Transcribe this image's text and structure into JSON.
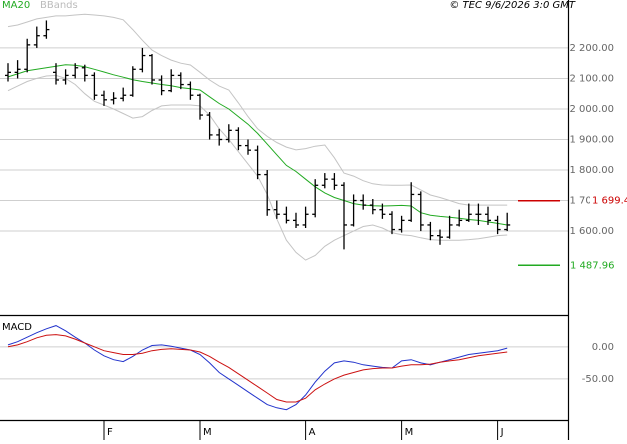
{
  "chart_data": [
    {
      "type": "ohlc",
      "credit": "© TEC 9/6/2026 3:0 GMT",
      "ohlc": {
        "color": "#000000",
        "open": [
          2110,
          2120,
          2130,
          2210,
          2240,
          2120,
          2095,
          2110,
          2135,
          2110,
          2045,
          2030,
          2035,
          2045,
          2130,
          2175,
          2095,
          2060,
          2110,
          2080,
          2045,
          1980,
          1915,
          1900,
          1930,
          1880,
          1865,
          1785,
          1670,
          1655,
          1635,
          1620,
          1655,
          1750,
          1770,
          1750,
          1620,
          1700,
          1685,
          1670,
          1655,
          1605,
          1635,
          1720,
          1620,
          1585,
          1580,
          1620,
          1635,
          1655,
          1655,
          1635,
          1605
        ],
        "high": [
          2150,
          2160,
          2230,
          2270,
          2290,
          2150,
          2130,
          2150,
          2145,
          2120,
          2060,
          2055,
          2070,
          2140,
          2200,
          2180,
          2110,
          2130,
          2120,
          2090,
          2050,
          1990,
          1935,
          1950,
          1940,
          1900,
          1880,
          1800,
          1700,
          1680,
          1660,
          1680,
          1770,
          1790,
          1790,
          1760,
          1720,
          1720,
          1705,
          1690,
          1665,
          1650,
          1760,
          1730,
          1630,
          1605,
          1650,
          1670,
          1690,
          1690,
          1680,
          1650,
          1660
        ],
        "low": [
          2090,
          2100,
          2120,
          2200,
          2230,
          2080,
          2080,
          2100,
          2090,
          2030,
          2010,
          2015,
          2025,
          2040,
          2120,
          2080,
          2045,
          2055,
          2065,
          2030,
          1965,
          1900,
          1880,
          1890,
          1865,
          1850,
          1770,
          1650,
          1640,
          1625,
          1610,
          1610,
          1645,
          1740,
          1735,
          1540,
          1615,
          1670,
          1655,
          1640,
          1590,
          1595,
          1630,
          1600,
          1570,
          1555,
          1575,
          1615,
          1630,
          1620,
          1620,
          1590,
          1600
        ],
        "close": [
          2120,
          2130,
          2210,
          2240,
          2260,
          2095,
          2110,
          2135,
          2110,
          2045,
          2030,
          2035,
          2045,
          2130,
          2175,
          2095,
          2060,
          2110,
          2080,
          2045,
          1980,
          1915,
          1900,
          1930,
          1880,
          1865,
          1785,
          1670,
          1655,
          1635,
          1620,
          1655,
          1750,
          1770,
          1750,
          1620,
          1700,
          1685,
          1670,
          1655,
          1605,
          1635,
          1720,
          1620,
          1585,
          1580,
          1620,
          1635,
          1655,
          1655,
          1635,
          1605,
          1620
        ]
      },
      "overlays": [
        {
          "name": "MA20",
          "color": "#22aa22",
          "values": [
            2105,
            2115,
            2125,
            2130,
            2135,
            2140,
            2145,
            2143,
            2138,
            2130,
            2121,
            2112,
            2104,
            2096,
            2090,
            2085,
            2080,
            2076,
            2070,
            2066,
            2062,
            2040,
            2018,
            2000,
            1975,
            1950,
            1920,
            1885,
            1850,
            1815,
            1795,
            1770,
            1745,
            1725,
            1710,
            1700,
            1690,
            1685,
            1683,
            1682,
            1683,
            1684,
            1682,
            1660,
            1652,
            1648,
            1645,
            1642,
            1638,
            1635,
            1630,
            1625,
            1620
          ]
        },
        {
          "name": "BBands",
          "color": "#c4c4c4",
          "upper": [
            2270,
            2275,
            2285,
            2295,
            2300,
            2305,
            2305,
            2308,
            2310,
            2308,
            2305,
            2300,
            2292,
            2260,
            2225,
            2193,
            2175,
            2160,
            2150,
            2144,
            2120,
            2095,
            2075,
            2062,
            2020,
            1975,
            1935,
            1910,
            1890,
            1875,
            1866,
            1870,
            1878,
            1882,
            1840,
            1790,
            1780,
            1765,
            1755,
            1751,
            1750,
            1750,
            1751,
            1735,
            1718,
            1710,
            1700,
            1690,
            1685,
            1685,
            1685,
            1685,
            1685
          ],
          "lower": [
            2060,
            2075,
            2090,
            2100,
            2108,
            2110,
            2100,
            2080,
            2050,
            2025,
            2013,
            2000,
            1985,
            1970,
            1975,
            1995,
            2010,
            2013,
            2013,
            2013,
            2010,
            1980,
            1935,
            1900,
            1860,
            1820,
            1780,
            1720,
            1640,
            1570,
            1530,
            1505,
            1520,
            1550,
            1570,
            1585,
            1600,
            1615,
            1620,
            1610,
            1595,
            1588,
            1585,
            1578,
            1572,
            1570,
            1570,
            1570,
            1572,
            1575,
            1580,
            1585,
            1587
          ]
        }
      ],
      "annotations": [
        {
          "value": 1699.4,
          "label": "1 699.4",
          "color": "#cc0000"
        },
        {
          "value": 1487.96,
          "label": "1 487.96",
          "color": "#22aa22"
        }
      ],
      "ylim": [
        1325,
        2357
      ],
      "yticks": [
        {
          "value": 1600,
          "label": "1 600.00"
        },
        {
          "value": 1700,
          "label": "1 700.00"
        },
        {
          "value": 1800,
          "label": "1 800.00"
        },
        {
          "value": 1900,
          "label": "1 900.00"
        },
        {
          "value": 2000,
          "label": "2 000.00"
        },
        {
          "value": 2100,
          "label": "2 100.00"
        },
        {
          "value": 2200,
          "label": "2 200.00"
        }
      ],
      "grid": true
    },
    {
      "type": "line",
      "title": "MACD",
      "categories": [
        null,
        null,
        null,
        null,
        null,
        null,
        null,
        null,
        null,
        null,
        "F",
        null,
        null,
        null,
        null,
        null,
        null,
        null,
        null,
        null,
        "M",
        null,
        null,
        null,
        null,
        null,
        null,
        null,
        null,
        null,
        null,
        "A",
        null,
        null,
        null,
        null,
        null,
        null,
        null,
        null,
        null,
        "M",
        null,
        null,
        null,
        null,
        null,
        null,
        null,
        null,
        null,
        "J",
        null
      ],
      "series": [
        {
          "color": "#2233cc",
          "values": [
            3,
            8,
            15,
            22,
            28,
            33,
            25,
            15,
            6,
            -5,
            -14,
            -20,
            -23,
            -15,
            -5,
            2,
            3,
            1,
            -2,
            -5,
            -12,
            -25,
            -40,
            -50,
            -60,
            -70,
            -80,
            -90,
            -95,
            -98,
            -90,
            -75,
            -55,
            -38,
            -25,
            -22,
            -24,
            -28,
            -30,
            -32,
            -33,
            -22,
            -20,
            -25,
            -28,
            -24,
            -20,
            -16,
            -12,
            -10,
            -8,
            -6,
            -2
          ]
        },
        {
          "color": "#cc1111",
          "values": [
            0,
            3,
            8,
            14,
            18,
            19,
            17,
            12,
            6,
            0,
            -6,
            -9,
            -12,
            -12,
            -10,
            -6,
            -4,
            -3,
            -4,
            -5,
            -8,
            -15,
            -24,
            -32,
            -42,
            -52,
            -62,
            -72,
            -82,
            -86,
            -86,
            -80,
            -67,
            -58,
            -50,
            -44,
            -40,
            -36,
            -34,
            -33,
            -33,
            -30,
            -28,
            -28,
            -27,
            -24,
            -22,
            -20,
            -17,
            -14,
            -12,
            -10,
            -8
          ]
        }
      ],
      "ylim": [
        -114,
        48
      ],
      "yticks": [
        {
          "value": 0,
          "label": "0.00"
        },
        {
          "value": -50,
          "label": "-50.00"
        }
      ],
      "grid": true
    }
  ]
}
